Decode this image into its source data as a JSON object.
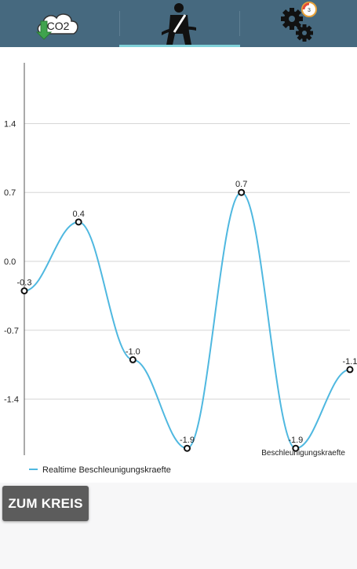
{
  "tabs": [
    {
      "icon": "co2-cloud-download-icon",
      "label": "CO2"
    },
    {
      "icon": "seatbelt-driver-icon"
    },
    {
      "icon": "gears-icon",
      "badge": "3"
    }
  ],
  "active_tab_index": 1,
  "colors": {
    "topbar": "#46697f",
    "tab_indicator": "#7fd0d8",
    "line": "#4fb8e0",
    "button": "#5c5c5c"
  },
  "chart_data": {
    "type": "line",
    "x": [
      0,
      1,
      2,
      3,
      4,
      5,
      6
    ],
    "series": [
      {
        "name": "Realtime Beschleunigungskraefte",
        "values": [
          -0.3,
          0.4,
          -1.0,
          -1.9,
          0.7,
          -1.9,
          -1.1
        ]
      }
    ],
    "point_labels": [
      "-0.3",
      "0.4",
      "-1.0",
      "-1.9",
      "0.7",
      "-1.9",
      "-1.1"
    ],
    "y_ticks": [
      1.4,
      0.7,
      0.0,
      -0.7,
      -1.4
    ],
    "y_tick_labels": [
      "1.4",
      "0.7",
      "0.0",
      "-0.7",
      "-1.4"
    ],
    "ylim": [
      -1.97,
      1.97
    ],
    "grid": true,
    "description": "Beschleunigungskraefte",
    "legend": {
      "position": "bottom-left",
      "label": "Realtime Beschleunigungskraefte"
    }
  },
  "button": {
    "label": "ZUM KREIS"
  }
}
